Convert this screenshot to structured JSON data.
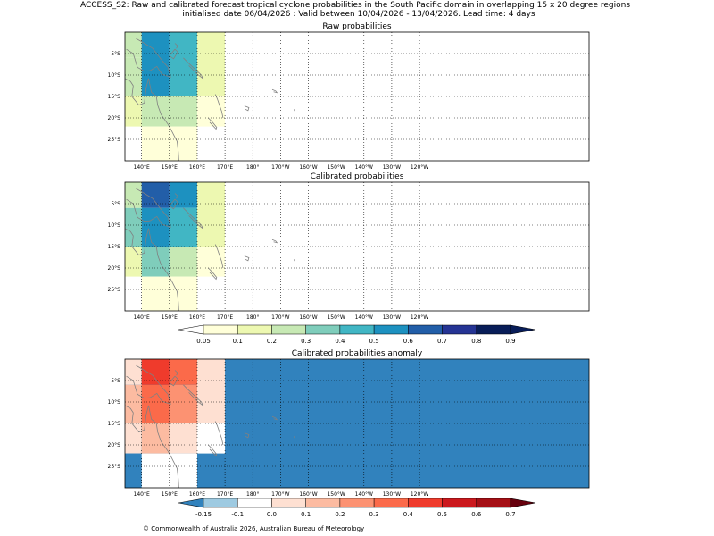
{
  "header": {
    "line1": "ACCESS_S2: Raw and calibrated forecast tropical cyclone probabilities in the South Pacific domain in overlapping 15 x 20 degree regions",
    "line2": "initialised date 06/04/2026 :  Valid between 10/04/2026 - 13/04/2026. Lead time: 4 days"
  },
  "footer": {
    "copyright": "© Commonwealth of Australia 2026, Australian Bureau of Meteorology"
  },
  "chart_data": [
    {
      "type": "heatmap",
      "title": "Raw probabilities",
      "x_ticks": [
        "140°E",
        "150°E",
        "160°E",
        "170°E",
        "180°",
        "170°W",
        "160°W",
        "150°W",
        "140°W",
        "130°W",
        "120°W"
      ],
      "y_ticks": [
        "5°S",
        "10°S",
        "15°S",
        "20°S",
        "25°S"
      ],
      "grid": true,
      "cells": [
        {
          "lon": [
            134,
            140
          ],
          "lat": [
            0,
            -6
          ],
          "value": 0.25
        },
        {
          "lon": [
            134,
            140
          ],
          "lat": [
            -6,
            -15
          ],
          "value": 0.25
        },
        {
          "lon": [
            134,
            140
          ],
          "lat": [
            -15,
            -22
          ],
          "value": 0.15
        },
        {
          "lon": [
            140,
            150
          ],
          "lat": [
            0,
            -15
          ],
          "value": 0.55
        },
        {
          "lon": [
            140,
            160
          ],
          "lat": [
            -15,
            -22
          ],
          "value": 0.25
        },
        {
          "lon": [
            140,
            160
          ],
          "lat": [
            -22,
            -30
          ],
          "value": 0.05
        },
        {
          "lon": [
            150,
            160
          ],
          "lat": [
            0,
            -15
          ],
          "value": 0.45
        },
        {
          "lon": [
            160,
            170
          ],
          "lat": [
            0,
            -15
          ],
          "value": 0.15
        },
        {
          "lon": [
            160,
            170
          ],
          "lat": [
            -15,
            -22
          ],
          "value": 0.05
        }
      ]
    },
    {
      "type": "heatmap",
      "title": "Calibrated probabilities",
      "x_ticks": [
        "140°E",
        "150°E",
        "160°E",
        "170°E",
        "180°",
        "170°W",
        "160°W",
        "150°W",
        "140°W",
        "130°W",
        "120°W"
      ],
      "y_ticks": [
        "5°S",
        "10°S",
        "15°S",
        "20°S",
        "25°S"
      ],
      "grid": true,
      "cells": [
        {
          "lon": [
            134,
            140
          ],
          "lat": [
            0,
            -6
          ],
          "value": 0.25
        },
        {
          "lon": [
            134,
            140
          ],
          "lat": [
            -6,
            -15
          ],
          "value": 0.35
        },
        {
          "lon": [
            134,
            140
          ],
          "lat": [
            -15,
            -22
          ],
          "value": 0.15
        },
        {
          "lon": [
            140,
            150
          ],
          "lat": [
            0,
            -6
          ],
          "value": 0.65
        },
        {
          "lon": [
            140,
            150
          ],
          "lat": [
            -6,
            -15
          ],
          "value": 0.55
        },
        {
          "lon": [
            140,
            150
          ],
          "lat": [
            -15,
            -22
          ],
          "value": 0.35
        },
        {
          "lon": [
            150,
            160
          ],
          "lat": [
            0,
            -6
          ],
          "value": 0.55
        },
        {
          "lon": [
            150,
            160
          ],
          "lat": [
            -6,
            -15
          ],
          "value": 0.45
        },
        {
          "lon": [
            150,
            160
          ],
          "lat": [
            -15,
            -22
          ],
          "value": 0.25
        },
        {
          "lon": [
            140,
            160
          ],
          "lat": [
            -22,
            -30
          ],
          "value": 0.05
        },
        {
          "lon": [
            160,
            170
          ],
          "lat": [
            0,
            -15
          ],
          "value": 0.15
        },
        {
          "lon": [
            160,
            170
          ],
          "lat": [
            -15,
            -22
          ],
          "value": 0.05
        }
      ]
    },
    {
      "type": "heatmap",
      "title": "Calibrated probabilities anomaly",
      "x_ticks": [
        "140°E",
        "150°E",
        "160°E",
        "170°E",
        "180°",
        "170°W",
        "160°W",
        "150°W",
        "140°W",
        "130°W",
        "120°W"
      ],
      "y_ticks": [
        "5°S",
        "10°S",
        "15°S",
        "20°S",
        "25°S"
      ],
      "grid": true,
      "background_value": -0.2,
      "cells": [
        {
          "lon": [
            134,
            140
          ],
          "lat": [
            0,
            -6
          ],
          "value": 0.05
        },
        {
          "lon": [
            134,
            140
          ],
          "lat": [
            -6,
            -15
          ],
          "value": 0.15
        },
        {
          "lon": [
            134,
            140
          ],
          "lat": [
            -15,
            -22
          ],
          "value": 0.0
        },
        {
          "lon": [
            134,
            140
          ],
          "lat": [
            -22,
            -30
          ],
          "value": -0.2
        },
        {
          "lon": [
            140,
            150
          ],
          "lat": [
            0,
            -6
          ],
          "value": 0.45
        },
        {
          "lon": [
            140,
            150
          ],
          "lat": [
            -6,
            -15
          ],
          "value": 0.35
        },
        {
          "lon": [
            140,
            150
          ],
          "lat": [
            -15,
            -22
          ],
          "value": 0.15
        },
        {
          "lon": [
            150,
            160
          ],
          "lat": [
            0,
            -6
          ],
          "value": 0.35
        },
        {
          "lon": [
            150,
            160
          ],
          "lat": [
            -6,
            -15
          ],
          "value": 0.25
        },
        {
          "lon": [
            150,
            160
          ],
          "lat": [
            -15,
            -22
          ],
          "value": 0.05
        },
        {
          "lon": [
            140,
            160
          ],
          "lat": [
            -22,
            -30
          ],
          "value": -0.1
        },
        {
          "lon": [
            160,
            170
          ],
          "lat": [
            0,
            -15
          ],
          "value": 0.0
        },
        {
          "lon": [
            160,
            170
          ],
          "lat": [
            -15,
            -22
          ],
          "value": -0.1
        }
      ]
    }
  ],
  "colorbar_prob": {
    "labels": [
      "0.05",
      "0.1",
      "0.2",
      "0.3",
      "0.4",
      "0.5",
      "0.6",
      "0.7",
      "0.8",
      "0.9"
    ],
    "colors": [
      "#ffffd9",
      "#edf8b1",
      "#c7e9b4",
      "#7fcdbb",
      "#41b6c4",
      "#1d91c0",
      "#225ea8",
      "#253494",
      "#081d58"
    ],
    "under": "#ffffff",
    "over": "#081d58"
  },
  "colorbar_anom": {
    "labels": [
      "-0.15",
      "-0.1",
      "0.0",
      "0.1",
      "0.2",
      "0.3",
      "0.4",
      "0.5",
      "0.6",
      "0.7"
    ],
    "colors": [
      "#9ecae1",
      "#ffffff",
      "#fee0d2",
      "#fcbba1",
      "#fc9272",
      "#fb6a4a",
      "#ef3b2c",
      "#cb181d",
      "#a50f15"
    ],
    "under": "#3182bd",
    "over": "#67000d"
  },
  "landmass_color": "#808080"
}
